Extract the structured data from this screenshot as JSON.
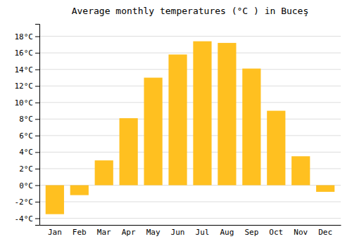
{
  "chart_data": {
    "type": "bar",
    "title": "Average monthly temperatures (°C ) in Buceş",
    "categories": [
      "Jan",
      "Feb",
      "Mar",
      "Apr",
      "May",
      "Jun",
      "Jul",
      "Aug",
      "Sep",
      "Oct",
      "Nov",
      "Dec"
    ],
    "values": [
      -3.5,
      -1.2,
      3.0,
      8.1,
      13.0,
      15.8,
      17.4,
      17.2,
      14.1,
      9.0,
      3.5,
      -0.8
    ],
    "color": "#FFC020",
    "ylim": [
      -4.8,
      19.5
    ],
    "yticks": [
      {
        "value": -4,
        "label": "-4°C"
      },
      {
        "value": -2,
        "label": "-2°C"
      },
      {
        "value": 0,
        "label": "0°C"
      },
      {
        "value": 2,
        "label": "2°C"
      },
      {
        "value": 4,
        "label": "4°C"
      },
      {
        "value": 6,
        "label": "6°C"
      },
      {
        "value": 8,
        "label": "8°C"
      },
      {
        "value": 10,
        "label": "10°C"
      },
      {
        "value": 12,
        "label": "12°C"
      },
      {
        "value": 14,
        "label": "14°C"
      },
      {
        "value": 16,
        "label": "16°C"
      },
      {
        "value": 18,
        "label": "18°C"
      }
    ],
    "grid": true
  }
}
